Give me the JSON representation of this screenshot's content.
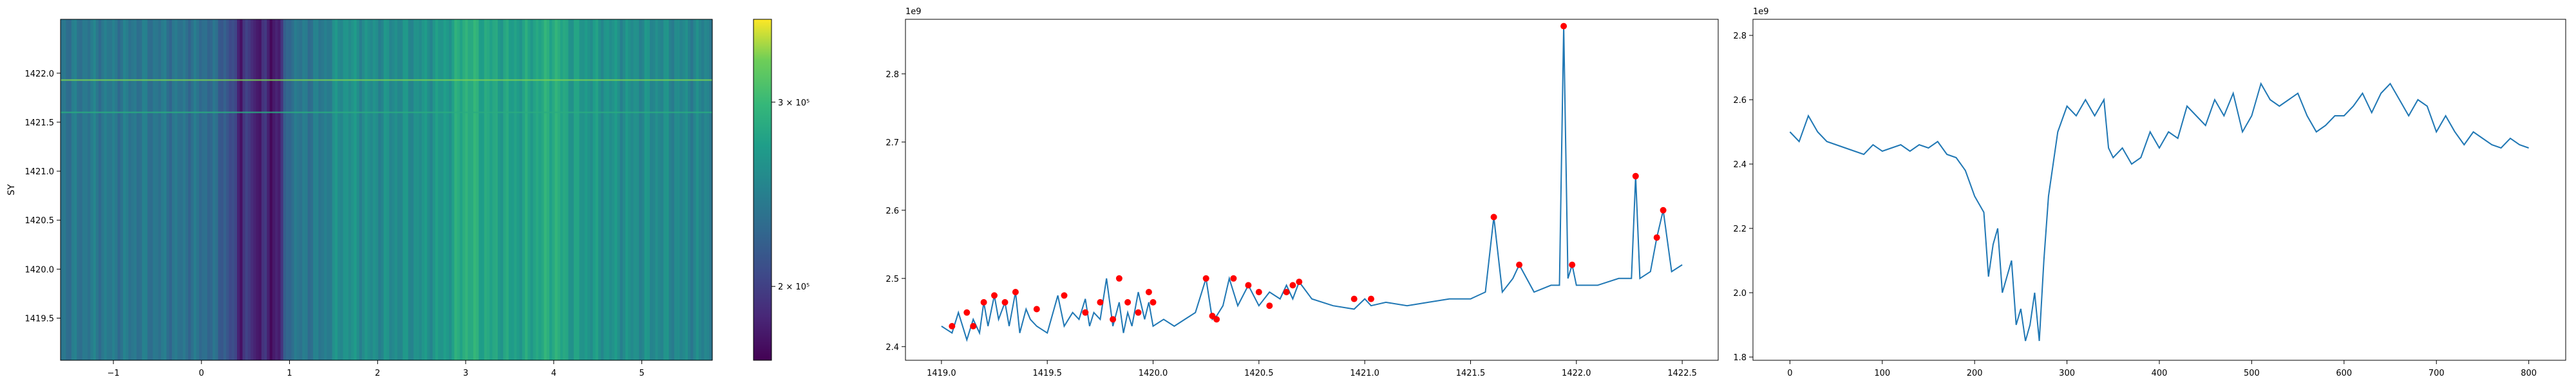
{
  "chart_data": [
    {
      "type": "heatmap",
      "title": "",
      "xlabel": "",
      "ylabel": "SY",
      "xlim": [
        -1.6,
        5.8
      ],
      "ylim": [
        1419.07,
        1422.55
      ],
      "xticks": [
        -1,
        0,
        1,
        2,
        3,
        4,
        5
      ],
      "xtick_labels": [
        "−1",
        "0",
        "1",
        "2",
        "3",
        "4",
        "5"
      ],
      "yticks": [
        1419.5,
        1420.0,
        1420.5,
        1421.0,
        1421.5,
        1422.0
      ],
      "ytick_labels": [
        "1419.5",
        "1420.0",
        "1420.5",
        "1421.0",
        "1421.5",
        "1422.0"
      ],
      "colormap": "viridis",
      "colorbar": {
        "scale": "log",
        "range": [
          170000,
          360000
        ],
        "ticks": [
          200000,
          300000
        ],
        "tick_labels": [
          "2 × 10⁵",
          "3 × 10⁵"
        ]
      },
      "column_profile": {
        "x": [
          -1.6,
          -1.2,
          -0.8,
          -0.4,
          0.0,
          0.2,
          0.35,
          0.45,
          0.55,
          0.6,
          0.7,
          0.8,
          0.9,
          1.0,
          1.2,
          1.4,
          1.6,
          1.8,
          2.0,
          2.2,
          2.4,
          2.6,
          2.8,
          3.0,
          3.2,
          3.4,
          3.6,
          3.8,
          4.0,
          4.2,
          4.4,
          4.6,
          4.8,
          5.0,
          5.2,
          5.4,
          5.6,
          5.8
        ],
        "values": [
          235000,
          240000,
          238000,
          236000,
          232000,
          225000,
          205000,
          185000,
          200000,
          180000,
          190000,
          178000,
          188000,
          235000,
          238000,
          242000,
          262000,
          258000,
          255000,
          256000,
          258000,
          262000,
          268000,
          292000,
          280000,
          275000,
          272000,
          278000,
          290000,
          270000,
          265000,
          262000,
          258000,
          256000,
          255000,
          252000,
          250000,
          248000
        ]
      },
      "row_highlights": [
        {
          "y": 1421.93,
          "value": 330000
        },
        {
          "y": 1421.6,
          "value": 285000
        }
      ]
    },
    {
      "type": "line",
      "title": "",
      "xlabel": "",
      "ylabel": "",
      "y_offset_label": "1e9",
      "xlim": [
        1418.83,
        1422.67
      ],
      "ylim": [
        2.38,
        2.88
      ],
      "xticks": [
        1419.0,
        1419.5,
        1420.0,
        1420.5,
        1421.0,
        1421.5,
        1422.0,
        1422.5
      ],
      "xtick_labels": [
        "1419.0",
        "1419.5",
        "1420.0",
        "1420.5",
        "1421.0",
        "1421.5",
        "1422.0",
        "1422.5"
      ],
      "yticks": [
        2.4,
        2.5,
        2.6,
        2.7,
        2.8
      ],
      "ytick_labels": [
        "2.4",
        "2.5",
        "2.6",
        "2.7",
        "2.8"
      ],
      "series": [
        {
          "color": "#1f77b4",
          "x": [
            1419.0,
            1419.05,
            1419.08,
            1419.12,
            1419.15,
            1419.18,
            1419.2,
            1419.22,
            1419.25,
            1419.27,
            1419.3,
            1419.32,
            1419.35,
            1419.37,
            1419.4,
            1419.42,
            1419.45,
            1419.5,
            1419.55,
            1419.58,
            1419.62,
            1419.65,
            1419.68,
            1419.7,
            1419.72,
            1419.75,
            1419.78,
            1419.81,
            1419.84,
            1419.86,
            1419.88,
            1419.9,
            1419.93,
            1419.96,
            1419.98,
            1420.0,
            1420.05,
            1420.1,
            1420.15,
            1420.2,
            1420.25,
            1420.28,
            1420.3,
            1420.33,
            1420.36,
            1420.4,
            1420.45,
            1420.5,
            1420.55,
            1420.6,
            1420.63,
            1420.66,
            1420.69,
            1420.75,
            1420.85,
            1420.95,
            1421.0,
            1421.03,
            1421.1,
            1421.2,
            1421.3,
            1421.4,
            1421.5,
            1421.57,
            1421.61,
            1421.65,
            1421.7,
            1421.73,
            1421.8,
            1421.88,
            1421.92,
            1421.94,
            1421.96,
            1421.98,
            1422.0,
            1422.1,
            1422.2,
            1422.26,
            1422.28,
            1422.3,
            1422.35,
            1422.38,
            1422.41,
            1422.45,
            1422.5
          ],
          "values": [
            2.43,
            2.42,
            2.45,
            2.41,
            2.44,
            2.42,
            2.465,
            2.43,
            2.475,
            2.44,
            2.465,
            2.43,
            2.48,
            2.42,
            2.455,
            2.44,
            2.43,
            2.42,
            2.475,
            2.43,
            2.45,
            2.44,
            2.47,
            2.43,
            2.45,
            2.44,
            2.5,
            2.43,
            2.465,
            2.42,
            2.45,
            2.43,
            2.48,
            2.44,
            2.465,
            2.43,
            2.44,
            2.43,
            2.44,
            2.45,
            2.5,
            2.44,
            2.445,
            2.46,
            2.5,
            2.46,
            2.49,
            2.46,
            2.48,
            2.47,
            2.49,
            2.47,
            2.495,
            2.47,
            2.46,
            2.455,
            2.47,
            2.46,
            2.465,
            2.46,
            2.465,
            2.47,
            2.47,
            2.48,
            2.59,
            2.48,
            2.5,
            2.52,
            2.48,
            2.49,
            2.49,
            2.87,
            2.5,
            2.52,
            2.49,
            2.49,
            2.5,
            2.5,
            2.65,
            2.5,
            2.51,
            2.56,
            2.6,
            2.51,
            2.52
          ]
        }
      ],
      "peaks": {
        "color": "#ff0000",
        "x": [
          1419.05,
          1419.12,
          1419.15,
          1419.2,
          1419.25,
          1419.3,
          1419.35,
          1419.45,
          1419.58,
          1419.68,
          1419.75,
          1419.81,
          1419.84,
          1419.88,
          1419.93,
          1419.98,
          1420.0,
          1420.25,
          1420.28,
          1420.3,
          1420.38,
          1420.45,
          1420.5,
          1420.55,
          1420.63,
          1420.66,
          1420.69,
          1420.95,
          1421.03,
          1421.61,
          1421.73,
          1421.94,
          1421.98,
          1422.28,
          1422.38,
          1422.41
        ],
        "values": [
          2.43,
          2.45,
          2.43,
          2.465,
          2.475,
          2.465,
          2.48,
          2.455,
          2.475,
          2.45,
          2.465,
          2.44,
          2.5,
          2.465,
          2.45,
          2.48,
          2.465,
          2.5,
          2.445,
          2.44,
          2.5,
          2.49,
          2.48,
          2.46,
          2.48,
          2.49,
          2.495,
          2.47,
          2.47,
          2.59,
          2.52,
          2.87,
          2.52,
          2.65,
          2.56,
          2.6
        ]
      }
    },
    {
      "type": "line",
      "title": "",
      "xlabel": "",
      "ylabel": "",
      "y_offset_label": "1e9",
      "xlim": [
        -40,
        840
      ],
      "ylim": [
        1.79,
        2.85
      ],
      "xticks": [
        0,
        100,
        200,
        300,
        400,
        500,
        600,
        700,
        800
      ],
      "xtick_labels": [
        "0",
        "100",
        "200",
        "300",
        "400",
        "500",
        "600",
        "700",
        "800"
      ],
      "yticks": [
        1.8,
        2.0,
        2.2,
        2.4,
        2.6,
        2.8
      ],
      "ytick_labels": [
        "1.8",
        "2.0",
        "2.2",
        "2.4",
        "2.6",
        "2.8"
      ],
      "series": [
        {
          "color": "#1f77b4",
          "x": [
            0,
            10,
            20,
            30,
            40,
            50,
            60,
            70,
            80,
            90,
            100,
            110,
            120,
            130,
            140,
            150,
            160,
            170,
            180,
            190,
            200,
            210,
            215,
            220,
            225,
            230,
            240,
            245,
            250,
            255,
            260,
            265,
            270,
            275,
            280,
            290,
            300,
            310,
            320,
            330,
            340,
            345,
            350,
            360,
            370,
            380,
            390,
            400,
            410,
            420,
            430,
            440,
            450,
            460,
            470,
            480,
            490,
            500,
            510,
            520,
            530,
            540,
            550,
            560,
            570,
            580,
            590,
            600,
            610,
            620,
            630,
            640,
            650,
            660,
            670,
            680,
            690,
            700,
            710,
            720,
            730,
            740,
            750,
            760,
            770,
            780,
            790,
            800
          ],
          "values": [
            2.5,
            2.47,
            2.55,
            2.5,
            2.47,
            2.46,
            2.45,
            2.44,
            2.43,
            2.46,
            2.44,
            2.45,
            2.46,
            2.44,
            2.46,
            2.45,
            2.47,
            2.43,
            2.42,
            2.38,
            2.3,
            2.25,
            2.05,
            2.15,
            2.2,
            2.0,
            2.1,
            1.9,
            1.95,
            1.85,
            1.9,
            2.0,
            1.85,
            2.1,
            2.3,
            2.5,
            2.58,
            2.55,
            2.6,
            2.55,
            2.6,
            2.45,
            2.42,
            2.45,
            2.4,
            2.42,
            2.5,
            2.45,
            2.5,
            2.48,
            2.58,
            2.55,
            2.52,
            2.6,
            2.55,
            2.62,
            2.5,
            2.55,
            2.65,
            2.6,
            2.58,
            2.6,
            2.62,
            2.55,
            2.5,
            2.52,
            2.55,
            2.55,
            2.58,
            2.62,
            2.56,
            2.62,
            2.65,
            2.6,
            2.55,
            2.6,
            2.58,
            2.5,
            2.55,
            2.5,
            2.46,
            2.5,
            2.48,
            2.46,
            2.45,
            2.48,
            2.46,
            2.45
          ]
        }
      ]
    }
  ]
}
